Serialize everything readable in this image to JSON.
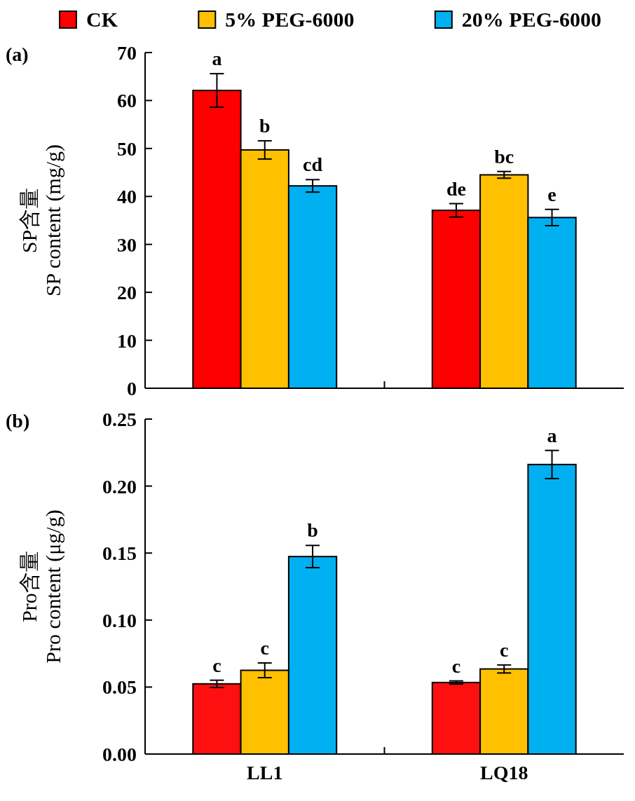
{
  "chart_data": [
    {
      "type": "bar",
      "title": "(a)",
      "ylabel": "SP含量\nSP content (mg/g)",
      "categories": [
        null,
        null
      ],
      "legend": "top",
      "tick_labels": "y",
      "ylim": [
        0,
        70
      ],
      "yticks": [
        0,
        10,
        20,
        30,
        40,
        50,
        60,
        70
      ],
      "series": [
        {
          "name": "CK",
          "color": "#ff0000",
          "values": [
            62.1,
            37.1
          ],
          "errors": [
            3.5,
            1.4
          ],
          "value_labels": [
            "a",
            "de"
          ]
        },
        {
          "name": "5% PEG-6000",
          "color": "#ffc000",
          "values": [
            49.7,
            44.5
          ],
          "errors": [
            1.9,
            0.7
          ],
          "value_labels": [
            "b",
            "bc"
          ]
        },
        {
          "name": "20% PEG-6000",
          "color": "#00b0f0",
          "values": [
            42.2,
            35.6
          ],
          "errors": [
            1.3,
            1.7
          ],
          "value_labels": [
            "cd",
            "e"
          ]
        }
      ]
    },
    {
      "type": "bar",
      "title": "(b)",
      "ylabel": "Pro含量\nPro content (μg/g)",
      "categories": [
        "LL1",
        "LQ18"
      ],
      "ylim": [
        0,
        0.25
      ],
      "yticks": [
        {
          "value": 0,
          "label": "0.00"
        },
        {
          "value": 0.05,
          "label": "0.05"
        },
        {
          "value": 0.1,
          "label": "0.10"
        },
        {
          "value": 0.15,
          "label": "0.15"
        },
        {
          "value": 0.2,
          "label": "0.20"
        },
        {
          "value": 0.25,
          "label": "0.25"
        }
      ],
      "series": [
        {
          "color": "#ff1010",
          "values": [
            0.0524,
            0.0534
          ],
          "errors": [
            0.0027,
            0.0012
          ],
          "value_labels": [
            "c",
            "c"
          ]
        },
        {
          "color": "#ffc000",
          "values": [
            0.0625,
            0.0635
          ],
          "errors": [
            0.0055,
            0.003
          ],
          "value_labels": [
            "c",
            "c"
          ]
        },
        {
          "color": "#00b0f0",
          "values": [
            0.1474,
            0.2161
          ],
          "errors": [
            0.0083,
            0.0105
          ],
          "value_labels": [
            "b",
            "a"
          ]
        }
      ]
    }
  ]
}
